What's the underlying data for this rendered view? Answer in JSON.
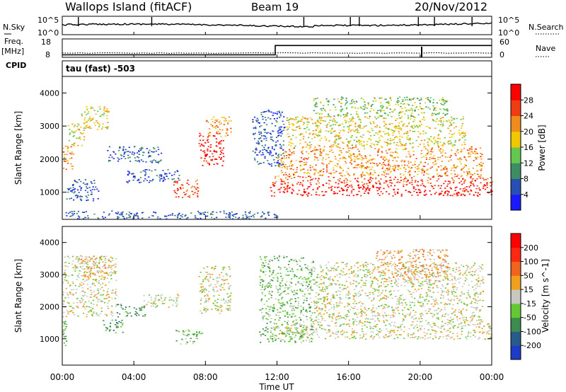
{
  "header": {
    "title": "Wallops Island (fitACF)",
    "beam": "Beam 19",
    "date": "20/Nov/2012"
  },
  "noise_panel": {
    "left_label": "N.Sky",
    "right_label": "N.Search",
    "tick_top": "10^5",
    "tick_bottom": "10^0"
  },
  "freq_panel": {
    "left_label_1": "Freq.",
    "left_label_2": "[MHz]",
    "right_label": "Nave",
    "left_ticks": [
      "18",
      "8"
    ],
    "right_ticks": [
      "60",
      "0"
    ],
    "freq_steps": [
      {
        "t": 0,
        "f": 10.1
      },
      {
        "t": 11.9,
        "f": 10.1
      },
      {
        "t": 11.9,
        "f": 15.2
      },
      {
        "t": 24,
        "f": 15.2
      }
    ]
  },
  "cpid": {
    "label": "CPID",
    "value": "tau (fast) -503"
  },
  "x_axis": {
    "label": "Time UT",
    "ticks": [
      "00:00",
      "04:00",
      "08:00",
      "12:00",
      "16:00",
      "20:00",
      "00:00"
    ],
    "range_hours": [
      0,
      24
    ]
  },
  "chart_data": [
    {
      "type": "heatmap",
      "name": "power",
      "ylabel": "Slant Range [km]",
      "yticks": [
        1000,
        2000,
        3000,
        4000
      ],
      "ylim": [
        180,
        4500
      ],
      "colorbar": {
        "label": "Power [dB]",
        "ticks": [
          "4",
          "8",
          "12",
          "16",
          "20",
          "24",
          "28"
        ],
        "colors": [
          "#1a1aff",
          "#2850b4",
          "#3c8c64",
          "#64c850",
          "#f0c800",
          "#f08c1e",
          "#f03c14",
          "#ff0000"
        ]
      },
      "echo_regions": [
        {
          "t0": 0.0,
          "t1": 0.6,
          "r0": 1700,
          "r1": 2500,
          "c": 5
        },
        {
          "t0": 0.3,
          "t1": 1.2,
          "r0": 2400,
          "r1": 3100,
          "c": 4
        },
        {
          "t0": 1.0,
          "t1": 2.6,
          "r0": 2900,
          "r1": 3600,
          "c": 4
        },
        {
          "t0": 0.2,
          "t1": 2.0,
          "r0": 750,
          "r1": 1400,
          "c": 1
        },
        {
          "t0": 2.5,
          "t1": 5.5,
          "r0": 1900,
          "r1": 2400,
          "c": 1
        },
        {
          "t0": 3.5,
          "t1": 6.5,
          "r0": 1300,
          "r1": 1700,
          "c": 1
        },
        {
          "t0": 6.2,
          "t1": 7.6,
          "r0": 850,
          "r1": 1400,
          "c": 6
        },
        {
          "t0": 7.6,
          "t1": 9.0,
          "r0": 1800,
          "r1": 2800,
          "c": 7
        },
        {
          "t0": 8.0,
          "t1": 9.4,
          "r0": 2700,
          "r1": 3300,
          "c": 5
        },
        {
          "t0": 11.6,
          "t1": 24,
          "r0": 900,
          "r1": 1250,
          "c": 7
        },
        {
          "t0": 11.7,
          "t1": 24,
          "r0": 1250,
          "r1": 1500,
          "c": 6
        },
        {
          "t0": 12.0,
          "t1": 23.5,
          "r0": 1500,
          "r1": 2400,
          "c": 5
        },
        {
          "t0": 12.5,
          "t1": 22.5,
          "r0": 2400,
          "r1": 3300,
          "c": 4
        },
        {
          "t0": 14.0,
          "t1": 21.5,
          "r0": 3300,
          "r1": 3900,
          "c": 3
        },
        {
          "t0": 10.6,
          "t1": 12.4,
          "r0": 1800,
          "r1": 3500,
          "c": 1
        },
        {
          "t0": 0.0,
          "t1": 12.0,
          "r0": 200,
          "r1": 450,
          "c": 1
        }
      ]
    },
    {
      "type": "heatmap",
      "name": "velocity",
      "ylabel": "Slant Range [km]",
      "yticks": [
        1000,
        2000,
        3000,
        4000
      ],
      "ylim": [
        180,
        4500
      ],
      "colorbar": {
        "label": "Velocity [m s^-1]",
        "ticks": [
          "200",
          "100",
          "50",
          "15",
          "-15",
          "-50",
          "-100",
          "-200"
        ],
        "colors": [
          "#1e3cc8",
          "#285a8c",
          "#3c8c50",
          "#64c832",
          "#c8c8c0",
          "#f0a01e",
          "#f0641e",
          "#ff2814",
          "#ff0000"
        ]
      },
      "echo_regions": [
        {
          "t0": 0.0,
          "t1": 3.0,
          "r0": 1700,
          "r1": 3600,
          "c": 4
        },
        {
          "t0": 1.0,
          "t1": 2.6,
          "r0": 2900,
          "r1": 3600,
          "c": 5
        },
        {
          "t0": 3.0,
          "t1": 4.6,
          "r0": 1700,
          "r1": 2100,
          "c": 2
        },
        {
          "t0": 2.2,
          "t1": 3.4,
          "r0": 1200,
          "r1": 1600,
          "c": 2
        },
        {
          "t0": 4.5,
          "t1": 6.5,
          "r0": 2000,
          "r1": 2400,
          "c": 4
        },
        {
          "t0": 6.3,
          "t1": 7.8,
          "r0": 850,
          "r1": 1300,
          "c": 3
        },
        {
          "t0": 7.6,
          "t1": 9.4,
          "r0": 1800,
          "r1": 3300,
          "c": 4
        },
        {
          "t0": 11.6,
          "t1": 24,
          "r0": 1000,
          "r1": 1500,
          "c": 4
        },
        {
          "t0": 11.0,
          "t1": 14.0,
          "r0": 900,
          "r1": 3600,
          "c": 3
        },
        {
          "t0": 14.0,
          "t1": 23.5,
          "r0": 1500,
          "r1": 3400,
          "c": 4
        },
        {
          "t0": 17.5,
          "t1": 21.5,
          "r0": 2800,
          "r1": 3800,
          "c": 5
        },
        {
          "t0": 0.0,
          "t1": 0.2,
          "r0": 800,
          "r1": 1700,
          "c": 3
        }
      ]
    }
  ]
}
